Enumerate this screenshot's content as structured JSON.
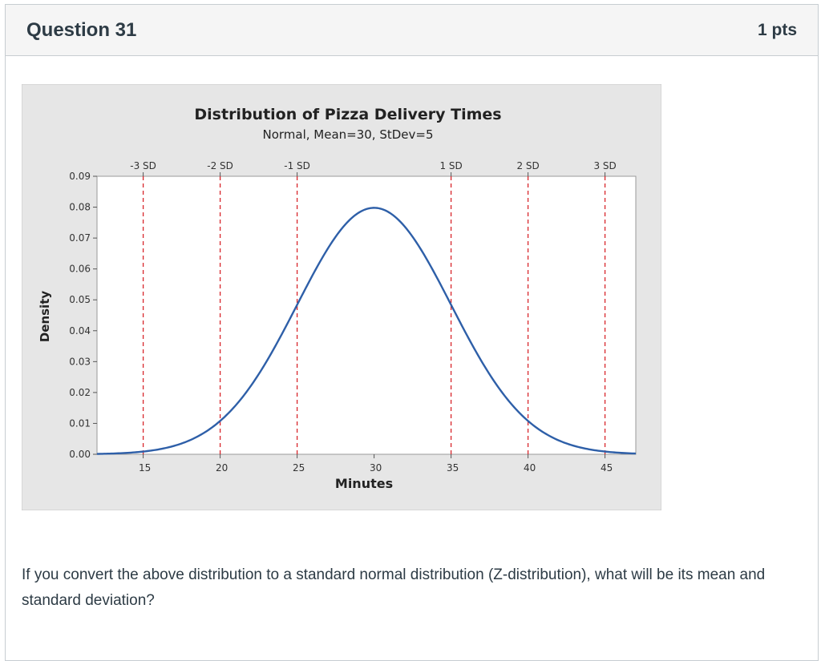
{
  "question": {
    "title": "Question 31",
    "points": "1 pts",
    "text": "If you convert the above distribution to a standard normal distribution (Z-distribution), what will be its mean and standard deviation?"
  },
  "chart_data": {
    "type": "line",
    "title": "Distribution of Pizza Delivery Times",
    "subtitle": "Normal, Mean=30, StDev=5",
    "xlabel": "Minutes",
    "ylabel": "Density",
    "mean": 30,
    "stdev": 5,
    "xlim": [
      12,
      47
    ],
    "ylim": [
      0,
      0.09
    ],
    "x_ticks": [
      15,
      20,
      25,
      30,
      35,
      40,
      45
    ],
    "y_ticks": [
      "0.00",
      "0.01",
      "0.02",
      "0.03",
      "0.04",
      "0.05",
      "0.06",
      "0.07",
      "0.08",
      "0.09"
    ],
    "reference_lines": [
      {
        "x": 15,
        "label": "-3 SD"
      },
      {
        "x": 20,
        "label": "-2 SD"
      },
      {
        "x": 25,
        "label": "-1 SD"
      },
      {
        "x": 35,
        "label": "1 SD"
      },
      {
        "x": 40,
        "label": "2 SD"
      },
      {
        "x": 45,
        "label": "3 SD"
      }
    ],
    "grid": false,
    "colors": {
      "curve": "#2e5fa8",
      "reference": "#d8262b",
      "panel": "#e6e6e6",
      "plot_bg": "#ffffff"
    }
  }
}
